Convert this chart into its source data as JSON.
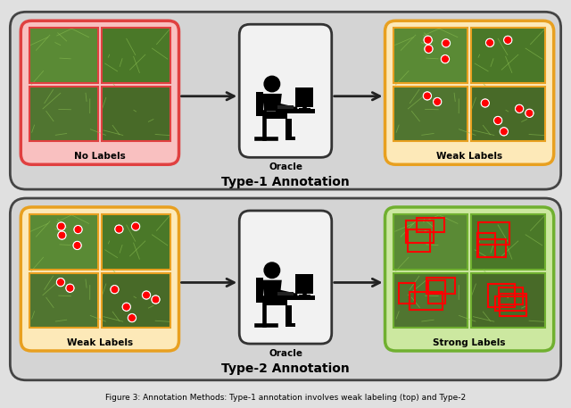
{
  "fig_width": 6.4,
  "fig_height": 4.57,
  "background": "#e0e0e0",
  "outer_box_color": "#d4d4d4",
  "outer_box_edge": "#444444",
  "type1_label": "Type-1 Annotation",
  "type2_label": "Type-2 Annotation",
  "caption": "Figure 3: Annotation Methods: Type-1 annotation involves weak labeling (top) and Type-2",
  "no_labels_text": "No Labels",
  "weak_labels_text": "Weak Labels",
  "strong_labels_text": "Strong Labels",
  "oracle_text": "Oracle",
  "pink_bg": "#f9c0c0",
  "pink_border": "#e04040",
  "orange_bg": "#fde9b8",
  "orange_border": "#e8a020",
  "green_bg": "#cce8a0",
  "green_border": "#70b030",
  "oracle_box_bg": "#f2f2f2",
  "oracle_box_border": "#333333",
  "arrow_color": "#222222",
  "label_fontsize": 7.5,
  "type_fontsize": 10,
  "caption_fontsize": 6.5
}
